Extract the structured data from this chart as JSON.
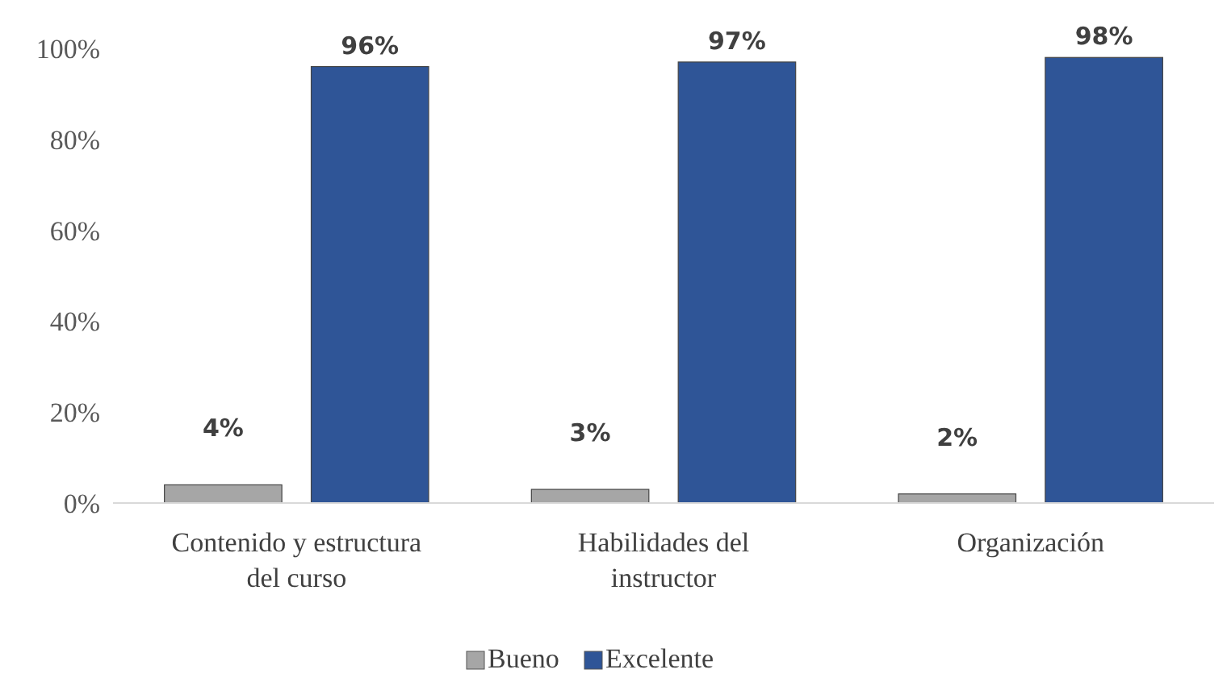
{
  "chart_data": {
    "type": "bar",
    "categories": [
      "Contenido y estructura del curso",
      "Habilidades del instructor",
      "Organización"
    ],
    "series": [
      {
        "name": "Bueno",
        "color": "#a6a6a6",
        "values": [
          4,
          3,
          2
        ],
        "value_labels": [
          "4%",
          "3%",
          "2%"
        ]
      },
      {
        "name": "Excelente",
        "color": "#2f5597",
        "values": [
          96,
          97,
          98
        ],
        "value_labels": [
          "96%",
          "97%",
          "98%"
        ]
      }
    ],
    "ylim": [
      0,
      100
    ],
    "yticks": [
      {
        "value": 0,
        "label": "0%"
      },
      {
        "value": 20,
        "label": "20%"
      },
      {
        "value": 40,
        "label": "40%"
      },
      {
        "value": 60,
        "label": "60%"
      },
      {
        "value": 80,
        "label": "80%"
      },
      {
        "value": 100,
        "label": "100%"
      }
    ],
    "grid": false,
    "legend": "bottom"
  }
}
